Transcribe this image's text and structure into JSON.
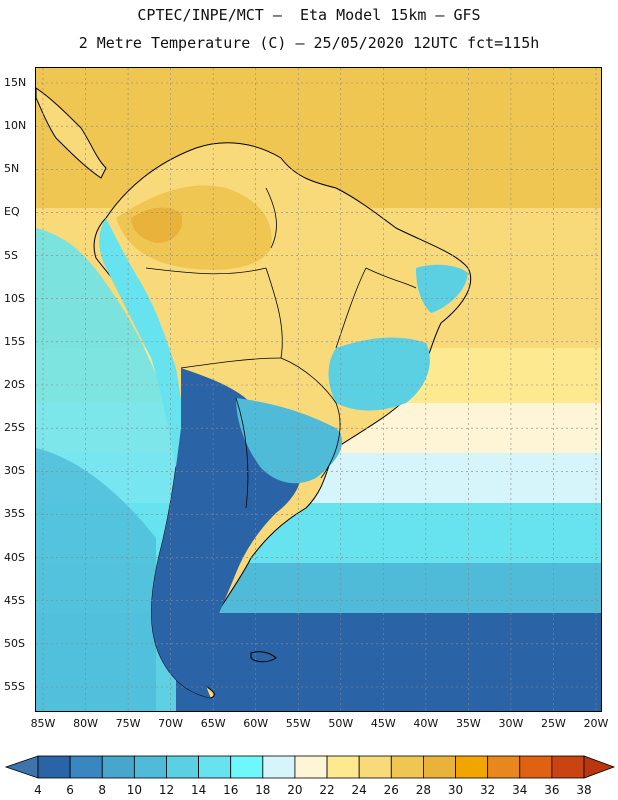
{
  "header": {
    "line1": "CPTEC/INPE/MCT –  Eta Model 15km – GFS",
    "line2": "2 Metre Temperature (C) – 25/05/2020 12UTC fct=115h"
  },
  "map": {
    "region": "South America",
    "lat_labels": [
      "15N",
      "10N",
      "5N",
      "EQ",
      "5S",
      "10S",
      "15S",
      "20S",
      "25S",
      "30S",
      "35S",
      "40S",
      "45S",
      "50S",
      "55S"
    ],
    "lon_labels": [
      "85W",
      "80W",
      "75W",
      "70W",
      "65W",
      "60W",
      "55W",
      "50W",
      "45W",
      "40W",
      "35W",
      "30W",
      "25W",
      "20W"
    ]
  },
  "colorbar": {
    "labels": [
      "4",
      "6",
      "8",
      "10",
      "12",
      "14",
      "16",
      "18",
      "20",
      "22",
      "24",
      "26",
      "28",
      "30",
      "32",
      "34",
      "36",
      "38"
    ],
    "colors": [
      "#3f73ab",
      "#2a64a6",
      "#3987c0",
      "#46a6cc",
      "#4fbbd9",
      "#5bd0e2",
      "#66e3ef",
      "#6ef8fb",
      "#d6f5fb",
      "#fdf5d5",
      "#fde98f",
      "#f8da7a",
      "#f0c653",
      "#e9b23b",
      "#f2a500",
      "#e8871d",
      "#df6213",
      "#c94411",
      "#b9360f"
    ]
  },
  "zones": {
    "warm_tropics": "#f0c653",
    "sahel_land": "#f8da7a",
    "cool_andes": "#66e3ef",
    "cold_south": "#2a64a6",
    "ocean_mid": "#d6f5fb"
  }
}
